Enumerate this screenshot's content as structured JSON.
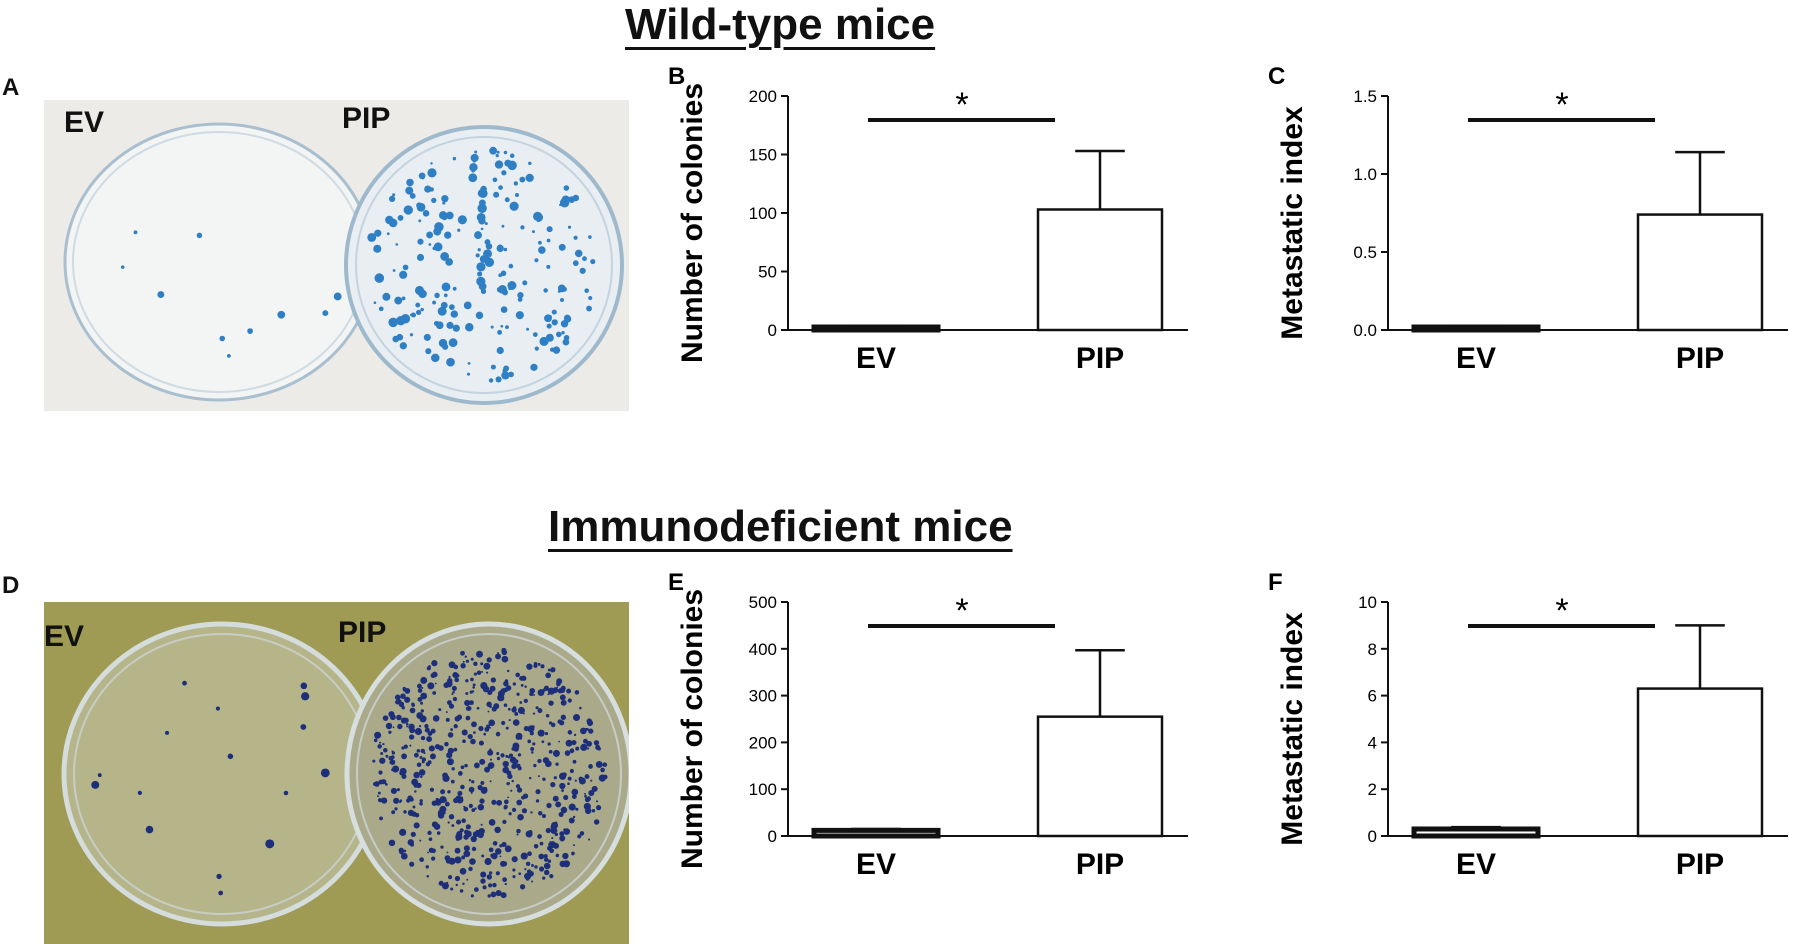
{
  "sections": {
    "top_title": "Wild-type mice",
    "bottom_title": "Immunodeficient mice"
  },
  "panels": {
    "A": {
      "letter": "A",
      "label_left": "EV",
      "label_right": "PIP"
    },
    "D": {
      "letter": "D",
      "label_left": "EV",
      "label_right": "PIP"
    }
  },
  "colors": {
    "bar_fill": "#ffffff",
    "bar_stroke": "#111111",
    "dish_stain_top": "#2f7fc4",
    "dish_stain_bottom": "#1d2f7a",
    "photo_bg_top": "#ecebe8",
    "photo_bg_bottom": "#9f9b55"
  },
  "chart_data": [
    {
      "panel": "B",
      "type": "bar",
      "categories": [
        "EV",
        "PIP"
      ],
      "values": [
        2,
        103
      ],
      "errors": [
        1,
        50
      ],
      "ylabel": "Number of colonies",
      "ylim": [
        0,
        200
      ],
      "yticks": [
        "0",
        "50",
        "100",
        "150",
        "200"
      ],
      "annotation": "*"
    },
    {
      "panel": "C",
      "type": "bar",
      "categories": [
        "EV",
        "PIP"
      ],
      "values": [
        0.015,
        0.74
      ],
      "errors": [
        0.005,
        0.4
      ],
      "ylabel": "Metastatic index",
      "ylim": [
        0,
        1.5
      ],
      "yticks": [
        "0.0",
        "0.5",
        "1.0",
        "1.5"
      ],
      "annotation": "*"
    },
    {
      "panel": "E",
      "type": "bar",
      "categories": [
        "EV",
        "PIP"
      ],
      "values": [
        12,
        255
      ],
      "errors": [
        3,
        142
      ],
      "ylabel": "Number of colonies",
      "ylim": [
        0,
        500
      ],
      "yticks": [
        "0",
        "100",
        "200",
        "300",
        "400",
        "500"
      ],
      "annotation": "*"
    },
    {
      "panel": "F",
      "type": "bar",
      "categories": [
        "EV",
        "PIP"
      ],
      "values": [
        0.3,
        6.3
      ],
      "errors": [
        0.08,
        2.7
      ],
      "ylabel": "Metastatic index",
      "ylim": [
        0,
        10
      ],
      "yticks": [
        "0",
        "2",
        "4",
        "6",
        "8",
        "10"
      ],
      "annotation": "*"
    }
  ]
}
